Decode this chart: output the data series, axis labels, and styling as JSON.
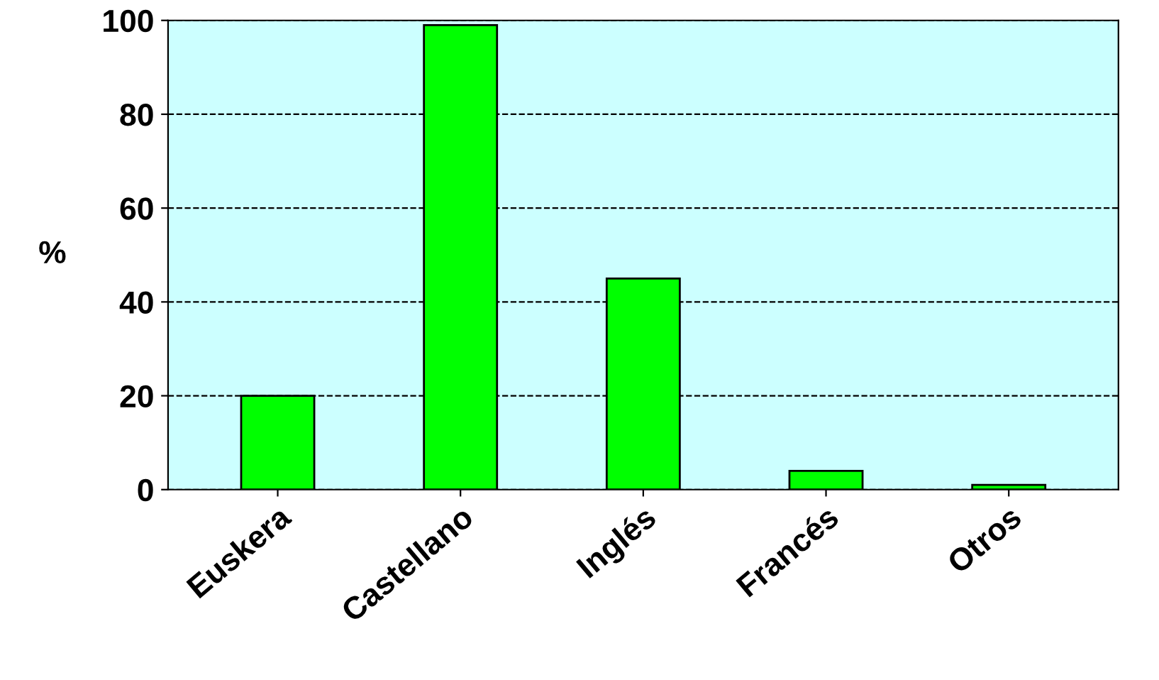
{
  "chart_data": {
    "type": "bar",
    "ylabel": "%",
    "categories": [
      "Euskera",
      "Castellano",
      "Inglés",
      "Francés",
      "Otros"
    ],
    "series": [
      {
        "color": "#00ff00",
        "values": [
          20,
          99,
          45,
          4,
          1
        ]
      }
    ],
    "ylim": [
      0,
      100
    ],
    "yticks": [
      0,
      20,
      40,
      60,
      80,
      100
    ],
    "grid": "y",
    "legend": false
  }
}
